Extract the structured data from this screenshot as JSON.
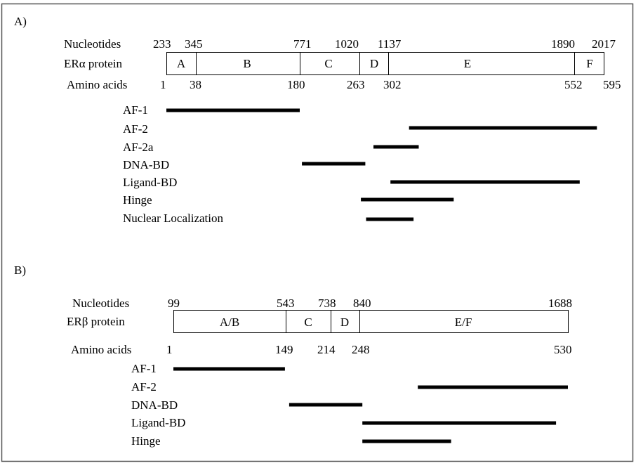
{
  "panels": [
    {
      "id": "A",
      "label": "A)",
      "nucleotides_label": "Nucleotides",
      "protein_label": "ERα protein",
      "amino_label": "Amino acids",
      "nucleotides": [
        "233",
        "345",
        "771",
        "1020",
        "1137",
        "1890",
        "2017"
      ],
      "amino_acids": [
        "1",
        "38",
        "180",
        "263",
        "302",
        "552",
        "595"
      ],
      "segments": [
        "A",
        "B",
        "C",
        "D",
        "E",
        "F"
      ],
      "domains": [
        {
          "name": "AF-1",
          "start": 1,
          "end": 180
        },
        {
          "name": "AF-2",
          "start": 330,
          "end": 585
        },
        {
          "name": "AF-2a",
          "start": 282,
          "end": 343
        },
        {
          "name": "DNA-BD",
          "start": 183,
          "end": 271
        },
        {
          "name": "Ligand-BD",
          "start": 305,
          "end": 560
        },
        {
          "name": "Hinge",
          "start": 265,
          "end": 390
        },
        {
          "name": "Nuclear Localization",
          "start": 272,
          "end": 336
        }
      ]
    },
    {
      "id": "B",
      "label": "B)",
      "nucleotides_label": "Nucleotides",
      "protein_label": "ERβ protein",
      "amino_label": "Amino acids",
      "nucleotides": [
        "99",
        "543",
        "738",
        "840",
        "1688"
      ],
      "amino_acids": [
        "1",
        "149",
        "214",
        "248",
        "530"
      ],
      "segments": [
        "A/B",
        "C",
        "D",
        "E/F"
      ],
      "domains": [
        {
          "name": "AF-1",
          "start": 1,
          "end": 148
        },
        {
          "name": "AF-2",
          "start": 327,
          "end": 530
        },
        {
          "name": "DNA-BD",
          "start": 154,
          "end": 252
        },
        {
          "name": "Ligand-BD",
          "start": 252,
          "end": 514
        },
        {
          "name": "Hinge",
          "start": 252,
          "end": 372
        }
      ]
    }
  ]
}
